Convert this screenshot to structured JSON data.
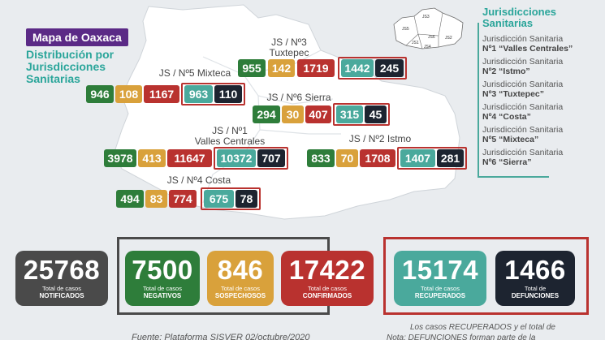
{
  "header": {
    "title": "Mapa de Oaxaca",
    "subtitle": "Distribución por Jurisdicciones Sanitarias"
  },
  "legend": {
    "title": "Jurisdicciones Sanitarias",
    "mini_map_labels": [
      "JS1",
      "JS2",
      "JS3",
      "JS4",
      "JS5",
      "JS6"
    ],
    "items": [
      {
        "line1": "Jurisdicción Sanitaria",
        "line2": "Nº1 “Valles Centrales”"
      },
      {
        "line1": "Jurisdicción Sanitaria",
        "line2": "Nº2 “Istmo”"
      },
      {
        "line1": "Jurisdicción Sanitaria",
        "line2": "Nº3 “Tuxtepec”"
      },
      {
        "line1": "Jurisdicción Sanitaria",
        "line2": "Nº4 “Costa”"
      },
      {
        "line1": "Jurisdicción Sanitaria",
        "line2": "Nº5 “Mixteca”"
      },
      {
        "line1": "Jurisdicción Sanitaria",
        "line2": "Nº6 “Sierra”"
      }
    ]
  },
  "jurisdictions": {
    "tuxtepec": {
      "label1": "JS / Nº3",
      "label2": "Tuxtepec",
      "negativos": "955",
      "sospechosos": "142",
      "confirmados": "1719",
      "recuperados": "1442",
      "defunciones": "245"
    },
    "mixteca": {
      "label1": "JS / Nº5 Mixteca",
      "negativos": "946",
      "sospechosos": "108",
      "confirmados": "1167",
      "recuperados": "963",
      "defunciones": "110"
    },
    "sierra": {
      "label1": "JS / Nº6 Sierra",
      "negativos": "294",
      "sospechosos": "30",
      "confirmados": "407",
      "recuperados": "315",
      "defunciones": "45"
    },
    "valles": {
      "label1": "JS / Nº1",
      "label2": "Valles Centrales",
      "negativos": "3978",
      "sospechosos": "413",
      "confirmados": "11647",
      "recuperados": "10372",
      "defunciones": "707"
    },
    "istmo": {
      "label1": "JS / Nº2 Istmo",
      "negativos": "833",
      "sospechosos": "70",
      "confirmados": "1708",
      "recuperados": "1407",
      "defunciones": "281"
    },
    "costa": {
      "label1": "JS / Nº4 Costa",
      "negativos": "494",
      "sospechosos": "83",
      "confirmados": "774",
      "recuperados": "675",
      "defunciones": "78"
    }
  },
  "totals": {
    "notificados": {
      "value": "25768",
      "line1": "Total de casos",
      "line2": "NOTIFICADOS"
    },
    "negativos": {
      "value": "7500",
      "line1": "Total de casos",
      "line2": "NEGATIVOS"
    },
    "sospechosos": {
      "value": "846",
      "line1": "Total de casos",
      "line2": "SOSPECHOSOS"
    },
    "confirmados": {
      "value": "17422",
      "line1": "Total de casos",
      "line2": "CONFIRMADOS"
    },
    "recuperados": {
      "value": "15174",
      "line1": "Total de casos",
      "line2": "RECUPERADOS"
    },
    "defunciones": {
      "value": "1466",
      "line1": "Total de",
      "line2": "DEFUNCIONES"
    }
  },
  "footer": {
    "source": "Fuente: Plataforma SISVER 02/octubre/2020",
    "note_line1": "Los casos RECUPERADOS y el total de",
    "note_line2": "Nota: DEFUNCIONES forman parte de la"
  },
  "colors": {
    "negativos": "#2e7d3a",
    "sospechosos": "#d9a13b",
    "confirmados": "#b9322f",
    "recuperados": "#4aa99c",
    "defunciones": "#1d2430",
    "notificados": "#4a4a4a",
    "accent_purple": "#5b2a86",
    "accent_teal": "#2aa59a"
  }
}
